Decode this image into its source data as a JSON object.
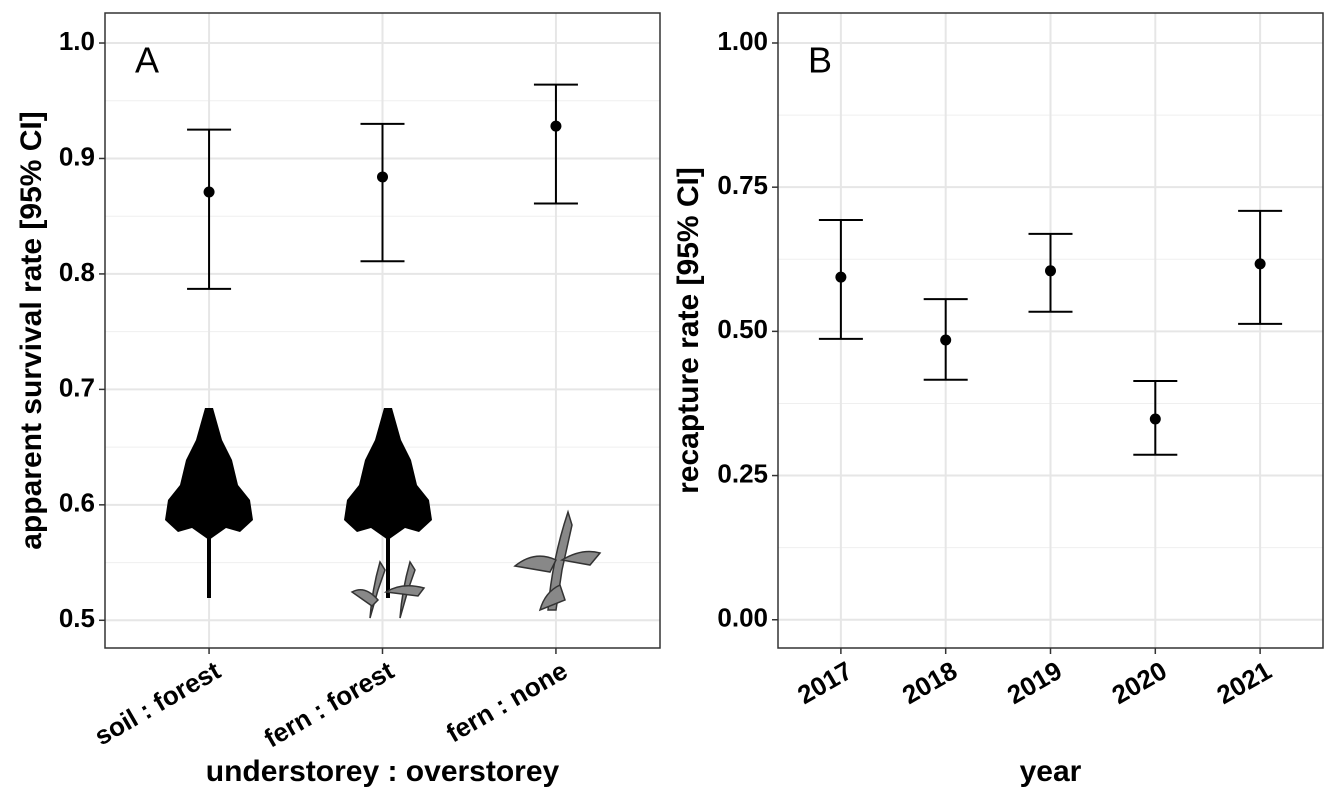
{
  "chart_data": [
    {
      "type": "errorbar",
      "annotation": "A",
      "x_label": "understorey : overstorey",
      "y_label": "apparent survival rate [95% CI]",
      "categories": [
        "soil : forest",
        "fern : forest",
        "fern : none"
      ],
      "values": [
        0.871,
        0.884,
        0.928
      ],
      "lower": [
        0.787,
        0.811,
        0.861
      ],
      "upper": [
        0.925,
        0.93,
        0.964
      ],
      "ylim": [
        0.476,
        1.026
      ],
      "yticks": [
        0.5,
        0.6,
        0.7,
        0.8,
        0.9,
        {
          "value": 1,
          "label": "1.0"
        }
      ],
      "grid": true,
      "color": "#000000"
    },
    {
      "type": "errorbar",
      "annotation": "B",
      "x_label": "year",
      "y_label": "recapture rate [95% CI]",
      "categories": [
        "2017",
        "2018",
        "2019",
        "2020",
        "2021"
      ],
      "values": [
        0.594,
        0.485,
        0.605,
        0.348,
        0.617
      ],
      "lower": [
        0.487,
        0.416,
        0.534,
        0.286,
        0.513
      ],
      "upper": [
        0.693,
        0.556,
        0.669,
        0.414,
        0.709
      ],
      "ylim": [
        -0.049,
        1.052
      ],
      "yticks": [
        {
          "value": 0,
          "label": "0.00"
        },
        {
          "value": 0.25,
          "label": "0.25"
        },
        {
          "value": 0.5,
          "label": "0.50"
        },
        {
          "value": 0.75,
          "label": "0.75"
        },
        {
          "value": 1,
          "label": "1.00"
        }
      ],
      "grid": true,
      "color": "#000000"
    }
  ]
}
